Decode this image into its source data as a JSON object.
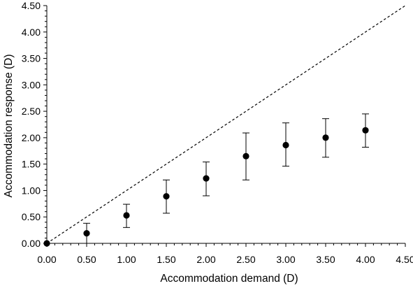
{
  "chart_data": {
    "type": "scatter",
    "xlabel": "Accommodation demand (D)",
    "ylabel": "Accommodation response (D)",
    "xlim": [
      0,
      4.5
    ],
    "ylim": [
      0,
      4.5
    ],
    "x_ticks": [
      "0.00",
      "0.50",
      "1.00",
      "1.50",
      "2.00",
      "2.50",
      "3.00",
      "3.50",
      "4.00",
      "4.50"
    ],
    "y_ticks": [
      "0.00",
      "0.50",
      "1.00",
      "1.50",
      "2.00",
      "2.50",
      "3.00",
      "3.50",
      "4.00",
      "4.50"
    ],
    "grid": false,
    "reference_line": {
      "style": "dashed",
      "from": [
        0,
        0
      ],
      "to": [
        4.5,
        4.5
      ]
    },
    "series": [
      {
        "x": [
          0.0,
          0.5,
          1.0,
          1.5,
          2.0,
          2.5,
          3.0,
          3.5,
          4.0
        ],
        "y": [
          0.0,
          0.19,
          0.53,
          0.89,
          1.23,
          1.65,
          1.86,
          2.0,
          2.14
        ],
        "err_low": [
          0.0,
          0.0,
          0.3,
          0.57,
          0.9,
          1.2,
          1.46,
          1.63,
          1.82
        ],
        "err_high": [
          0.0,
          0.38,
          0.74,
          1.2,
          1.54,
          2.09,
          2.28,
          2.36,
          2.45
        ]
      }
    ]
  }
}
